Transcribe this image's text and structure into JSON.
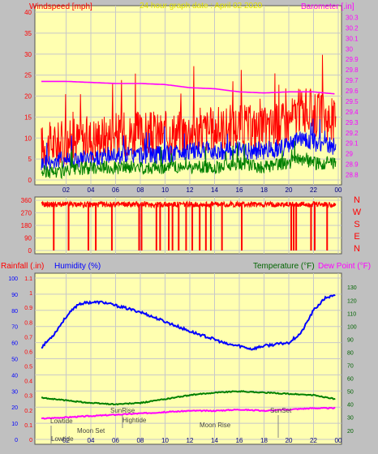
{
  "chart_data": [
    {
      "type": "line",
      "title": "24 hour graph date : April 02 2020",
      "left_axis_label": "Windspeed [mph]",
      "right_axis_label": "Barometer [.in]",
      "x_ticks": [
        "02",
        "04",
        "06",
        "08",
        "10",
        "12",
        "14",
        "16",
        "18",
        "20",
        "22",
        "00"
      ],
      "y_left_ticks": [
        "0",
        "5",
        "10",
        "15",
        "20",
        "25",
        "30",
        "35",
        "40"
      ],
      "y_left_range": [
        0,
        40
      ],
      "y_right_ticks": [
        "28.8",
        "28.9",
        "29",
        "29.1",
        "29.2",
        "29.3",
        "29.4",
        "29.5",
        "29.6",
        "29.7",
        "29.8",
        "29.9",
        "30",
        "30.1",
        "30.2",
        "30.3"
      ],
      "y_right_range": [
        28.75,
        30.35
      ],
      "grid": true,
      "series": [
        {
          "color": "#ff0000",
          "x": [
            0,
            2,
            4,
            6,
            8,
            10,
            12,
            14,
            16,
            18,
            20,
            21,
            22,
            23.8
          ],
          "y": [
            8,
            9,
            10,
            11,
            11,
            11,
            12,
            12,
            13,
            12,
            14,
            17,
            16,
            14
          ]
        },
        {
          "color": "#0000ff",
          "x": [
            0,
            2,
            4,
            6,
            8,
            10,
            12,
            14,
            16,
            18,
            20,
            21,
            22,
            23.8
          ],
          "y": [
            4,
            5,
            5,
            6,
            6,
            6,
            7,
            7,
            7,
            7,
            8,
            10,
            9,
            8
          ]
        },
        {
          "color": "#008000",
          "x": [
            0,
            2,
            4,
            6,
            8,
            10,
            12,
            14,
            16,
            18,
            20,
            21,
            22,
            23.8
          ],
          "y": [
            2,
            2,
            3,
            3,
            3,
            3,
            3,
            3,
            4,
            3,
            4,
            5,
            4,
            4
          ]
        },
        {
          "color": "#ff00ff",
          "axis": "right",
          "x": [
            0,
            2,
            4,
            6,
            8,
            10,
            12,
            14,
            16,
            18,
            20,
            22,
            23.8
          ],
          "y": [
            29.69,
            29.69,
            29.68,
            29.67,
            29.67,
            29.66,
            29.63,
            29.62,
            29.59,
            29.58,
            29.59,
            29.59,
            29.57
          ]
        }
      ]
    },
    {
      "type": "line",
      "right_axis_label": "N W S E N",
      "y_left_ticks": [
        "0",
        "90",
        "180",
        "270",
        "360"
      ],
      "y_left_range": [
        0,
        360
      ],
      "grid": true,
      "series": [
        {
          "color": "#ff0000",
          "base": 330,
          "drops_at": [
            1,
            2.2,
            3.8,
            4.4,
            5.7,
            7.9,
            8.1,
            9.3,
            9.6,
            10.3,
            10.6,
            11.1,
            11.7,
            12.2,
            12.8,
            13.3,
            13.7,
            14.6,
            16.2,
            20.2,
            20.4,
            20.6,
            21.8,
            22.1,
            23.1
          ]
        }
      ]
    },
    {
      "type": "line",
      "labels": {
        "rainfall": "Rainfall (.in)",
        "humidity": "Humidity (%)",
        "temperature": "Temperature (°F)",
        "dew_point": "Dew Point (°F)"
      },
      "y_left_rain_ticks": [
        "0",
        "0.1",
        "0.2",
        "0.3",
        "0.4",
        "0.5",
        "0.6",
        "0.7",
        "0.8",
        "0.9",
        "1",
        "1.1"
      ],
      "y_left_humidity_ticks": [
        "0",
        "10",
        "20",
        "30",
        "40",
        "50",
        "60",
        "70",
        "80",
        "90",
        "100"
      ],
      "y_right_ticks": [
        "20",
        "30",
        "40",
        "50",
        "60",
        "70",
        "80",
        "90",
        "100",
        "110",
        "120",
        "130"
      ],
      "y_right_range": [
        13,
        137
      ],
      "x_ticks": [
        "02",
        "04",
        "06",
        "08",
        "10",
        "12",
        "14",
        "16",
        "18",
        "20",
        "22",
        "00"
      ],
      "annotations": [
        "Lowtide",
        "Moon Set",
        "SunRise",
        "Hightide",
        "Moon Rise",
        "SunSet",
        "Lowtide"
      ],
      "grid": true,
      "series": [
        {
          "name": "Humidity (%)",
          "color": "#0000ff",
          "axis": "humidity",
          "x": [
            0,
            1,
            2,
            3,
            4,
            5,
            6,
            8,
            10,
            12,
            14,
            15,
            16,
            17,
            18,
            19,
            20,
            21,
            22,
            23,
            23.8
          ],
          "y": [
            57,
            65,
            76,
            84,
            85,
            85,
            83,
            79,
            73,
            67,
            62,
            59,
            58,
            56,
            58,
            59,
            60,
            66,
            80,
            88,
            89
          ]
        },
        {
          "name": "Temperature (°F)",
          "color": "#008000",
          "axis": "right",
          "x": [
            0,
            2,
            4,
            6,
            8,
            10,
            12,
            14,
            16,
            18,
            20,
            22,
            23.8
          ],
          "y": [
            45,
            43,
            41,
            40,
            41,
            44,
            47,
            49,
            50,
            49,
            48,
            47,
            44
          ]
        },
        {
          "name": "Dew Point (°F)",
          "color": "#ff00ff",
          "axis": "right",
          "x": [
            0,
            2,
            4,
            6,
            8,
            10,
            12,
            14,
            16,
            18,
            20,
            22,
            23.8
          ],
          "y": [
            29,
            30,
            31,
            32,
            33,
            34,
            35,
            35,
            36,
            35,
            36,
            37,
            37
          ]
        }
      ]
    }
  ]
}
